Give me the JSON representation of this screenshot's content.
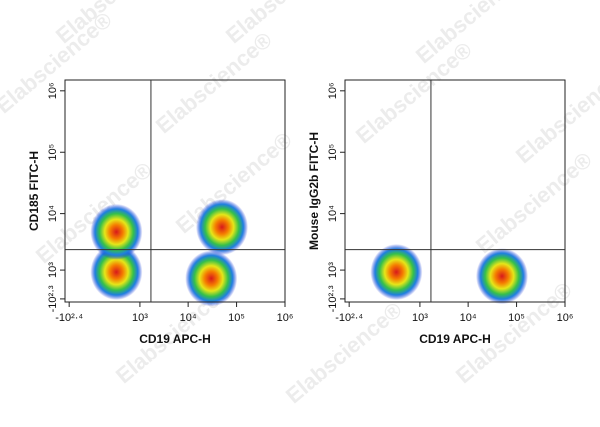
{
  "watermark": "Elabscience®",
  "chart_data": [
    {
      "type": "scatter",
      "x_label": "CD19 APC-H",
      "y_label": "CD185 FITC-H",
      "x": [
        300,
        300,
        50000,
        30000
      ],
      "y": [
        900,
        5000,
        6000,
        600
      ],
      "xlim": [
        -320,
        1000000
      ],
      "ylim": [
        -320,
        1500000
      ],
      "xticks": [
        {
          "value": -251,
          "label": "-10²·⁴"
        },
        {
          "value": 1000,
          "label": "10³"
        },
        {
          "value": 10000,
          "label": "10⁴"
        },
        {
          "value": 100000,
          "label": "10⁵"
        },
        {
          "value": 1000000,
          "label": "10⁶"
        }
      ],
      "yticks": [
        {
          "value": -200,
          "label": "-10²·³"
        },
        {
          "value": 1000,
          "label": "10³"
        },
        {
          "value": 10000,
          "label": "10⁴"
        },
        {
          "value": 100000,
          "label": "10⁵"
        },
        {
          "value": 1000000,
          "label": "10⁶"
        }
      ],
      "scale": "biexponential",
      "gate": {
        "x": 1700,
        "y": 2500
      }
    },
    {
      "type": "scatter",
      "x_label": "CD19 APC-H",
      "y_label": "Mouse IgG2b FITC-H",
      "x": [
        300,
        50000
      ],
      "y": [
        900,
        700
      ],
      "xlim": [
        -320,
        1000000
      ],
      "ylim": [
        -320,
        1500000
      ],
      "xticks": [
        {
          "value": -251,
          "label": "-10²·⁴"
        },
        {
          "value": 1000,
          "label": "10³"
        },
        {
          "value": 10000,
          "label": "10⁴"
        },
        {
          "value": 100000,
          "label": "10⁵"
        },
        {
          "value": 1000000,
          "label": "10⁶"
        }
      ],
      "yticks": [
        {
          "value": -200,
          "label": "-10²·³"
        },
        {
          "value": 1000,
          "label": "10³"
        },
        {
          "value": 10000,
          "label": "10⁴"
        },
        {
          "value": 100000,
          "label": "10⁵"
        },
        {
          "value": 1000000,
          "label": "10⁶"
        }
      ],
      "scale": "biexponential",
      "gate": {
        "x": 1700,
        "y": 2500
      }
    }
  ]
}
